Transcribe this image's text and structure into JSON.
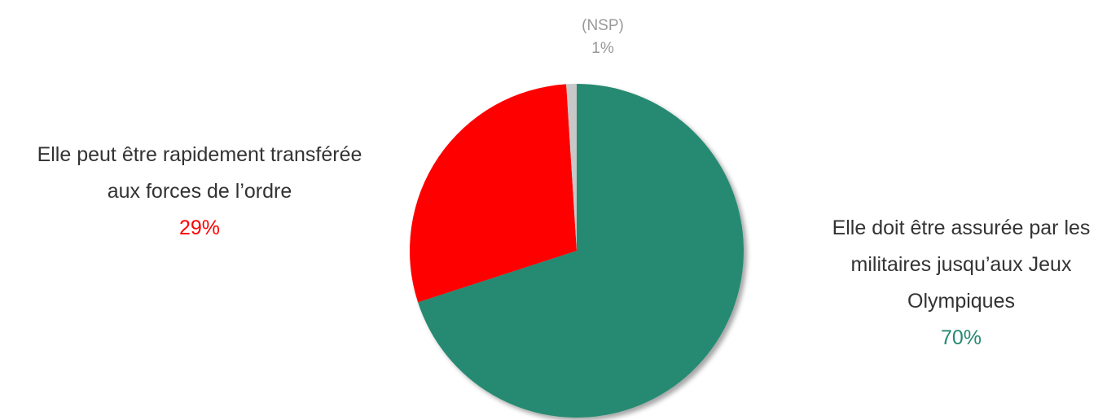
{
  "chart_data": {
    "type": "pie",
    "categories": [
      "Elle doit être assurée par les militaires jusqu’aux Jeux Olympiques",
      "Elle peut être rapidement transférée aux forces de l’ordre",
      "(NSP)"
    ],
    "values": [
      70,
      29,
      1
    ],
    "value_labels": [
      "70%",
      "29%",
      "1%"
    ],
    "colors": [
      "#268a72",
      "#ff0000",
      "#c8c8c8"
    ]
  }
}
